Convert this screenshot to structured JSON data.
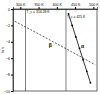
{
  "chart_data": {
    "type": "line",
    "y_label": "ln τ",
    "xlim": [
      280,
      510
    ],
    "xticks": [
      {
        "value": 300,
        "label": "300 K"
      },
      {
        "value": 350,
        "label": "350 K"
      },
      {
        "value": 400,
        "label": "400 K"
      },
      {
        "value": 450,
        "label": "450 K"
      },
      {
        "value": 500,
        "label": "500 K"
      }
    ],
    "ylim": [
      -10,
      0
    ],
    "yticks": [
      -10,
      -8,
      -6,
      -4,
      -2,
      0
    ],
    "series": [
      {
        "name": "β",
        "color": "#333333",
        "line_style": "dashed",
        "marker": "none",
        "x": [
          285,
          340,
          390,
          440,
          505
        ],
        "values": [
          -1.5,
          -2.8,
          -4.0,
          -5.2,
          -6.8
        ]
      },
      {
        "name": "α",
        "color": "#000000",
        "line_style": "solid",
        "marker": "circle",
        "x": [
          432,
          442,
          452,
          462,
          472,
          482,
          492
        ],
        "values": [
          -0.6,
          -2.0,
          -3.4,
          -4.8,
          -6.2,
          -7.6,
          -9.0
        ]
      }
    ],
    "vlines": [
      {
        "x": 314.28,
        "label": "T_c = 314.28 K"
      },
      {
        "x": 425,
        "label": "T_c = 425 K"
      }
    ]
  }
}
